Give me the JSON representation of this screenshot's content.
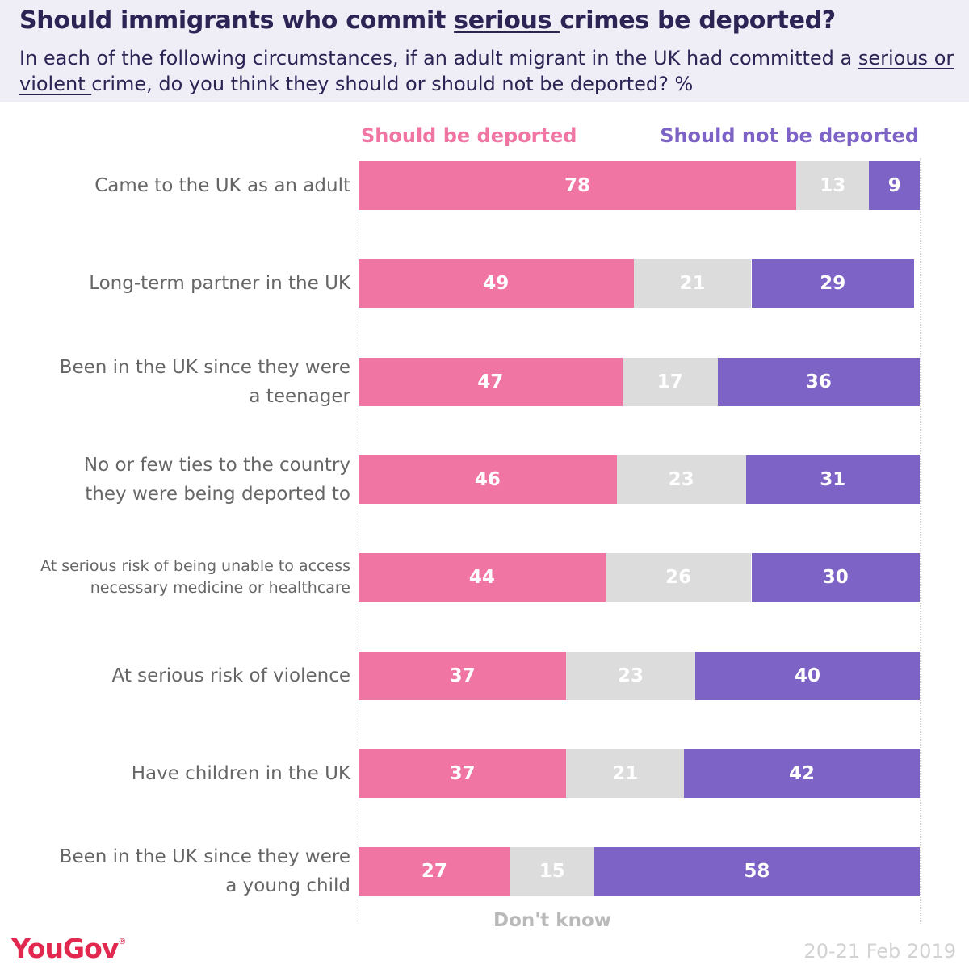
{
  "header": {
    "title_pre": "Should immigrants who commit ",
    "title_underlined": "serious ",
    "title_post": "crimes be deported?",
    "subtitle_pre": "In each of the following circumstances, if an adult migrant in the UK had committed a ",
    "subtitle_underlined": "serious or violent ",
    "subtitle_post": "crime, do you think they should or should not be deported? %"
  },
  "legend": {
    "should": "Should be deported",
    "should_not": "Should not be deported",
    "dont_know": "Don't know"
  },
  "colors": {
    "should": "#f075a3",
    "dont_know": "#dcdcdc",
    "should_not": "#7e63c6",
    "title": "#2b2454",
    "brand": "#e2284f"
  },
  "chart_data": {
    "type": "bar",
    "orientation": "horizontal",
    "stacked": true,
    "unit": "%",
    "xlim": [
      0,
      100
    ],
    "categories": [
      [
        "Came to the UK as an adult"
      ],
      [
        "Long-term partner in the UK"
      ],
      [
        "Been in the UK since they were",
        "a teenager"
      ],
      [
        "No or few ties to the country",
        "they were being deported to"
      ],
      [
        "At serious risk of being unable to access",
        "necessary medicine or healthcare"
      ],
      [
        "At serious risk of violence"
      ],
      [
        "Have children in the UK"
      ],
      [
        "Been in the UK since they were",
        "a young child"
      ]
    ],
    "series": [
      {
        "name": "Should be deported",
        "values": [
          78,
          49,
          47,
          46,
          44,
          37,
          37,
          27
        ]
      },
      {
        "name": "Don't know",
        "values": [
          13,
          21,
          17,
          23,
          26,
          23,
          21,
          15
        ]
      },
      {
        "name": "Should not be deported",
        "values": [
          9,
          29,
          36,
          31,
          30,
          40,
          42,
          58
        ]
      }
    ],
    "grid": false,
    "legend_position": "top"
  },
  "footer": {
    "brand": "YouGov",
    "brand_mark": "®",
    "date": "20-21 Feb 2019"
  }
}
